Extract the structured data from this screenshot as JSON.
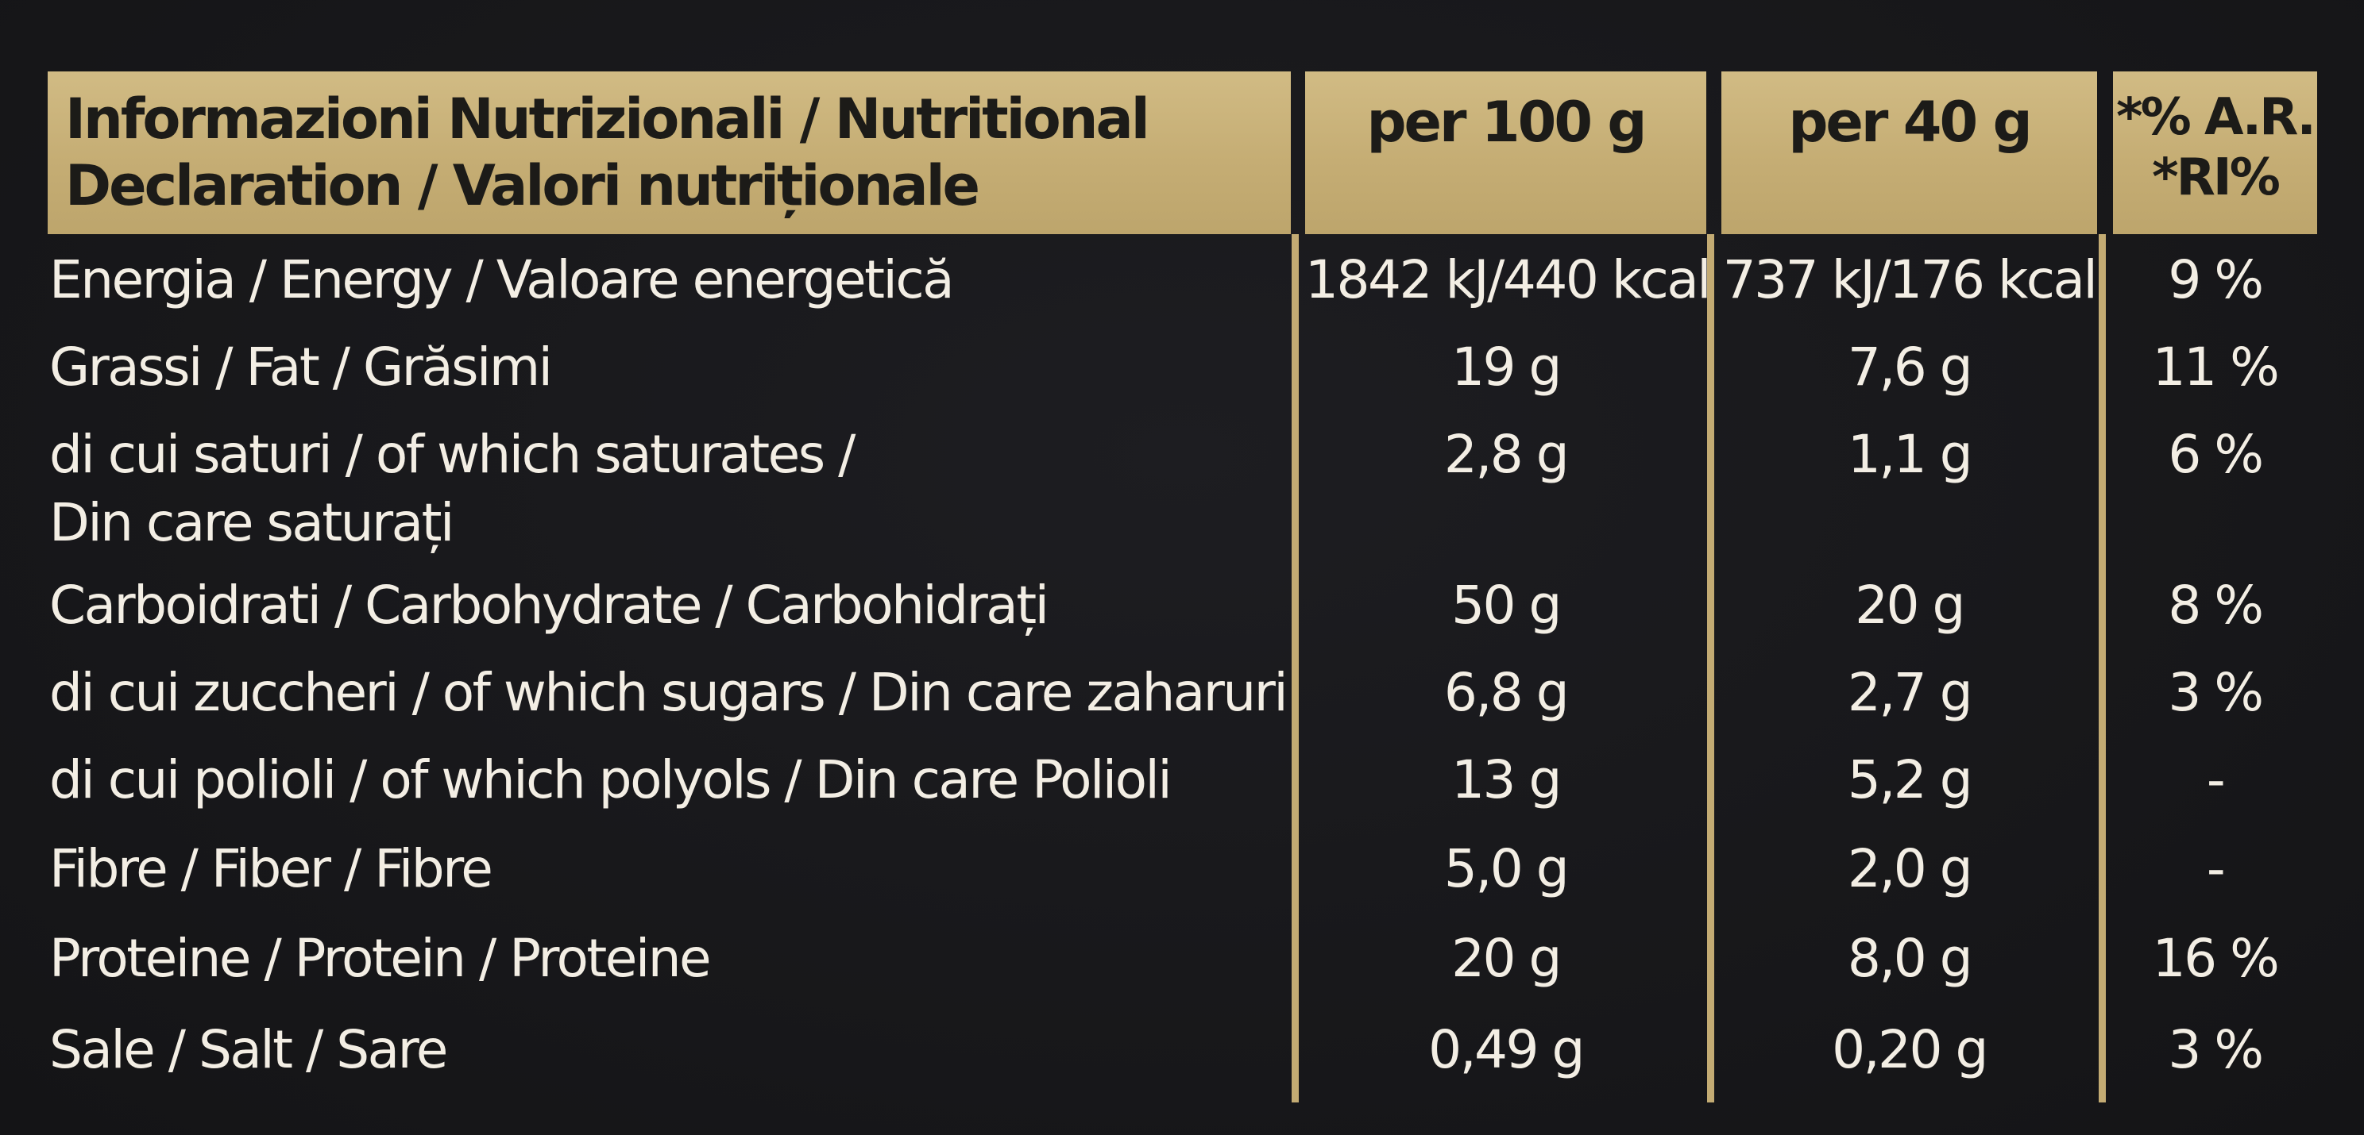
{
  "header": {
    "title": "Informazioni Nutrizionali / Nutritional\nDeclaration / Valori nutriționale",
    "col_100g": "per 100 g",
    "col_40g": "per 40 g",
    "col_ri": "*% A.R.\n*RI%"
  },
  "rows": [
    {
      "label": "Energia / Energy / Valoare energetică",
      "per100": "1842 kJ/440 kcal",
      "per40": "737 kJ/176 kcal",
      "ri": "9 %"
    },
    {
      "label": "Grassi / Fat / Grăsimi",
      "per100": "19 g",
      "per40": "7,6 g",
      "ri": "11 %"
    },
    {
      "label": "di cui saturi / of which saturates /\nDin care saturați",
      "per100": "2,8 g",
      "per40": "1,1 g",
      "ri": "6 %"
    },
    {
      "label": "Carboidrati / Carbohydrate / Carbohidrați",
      "per100": "50 g",
      "per40": "20 g",
      "ri": "8 %"
    },
    {
      "label": "di cui zuccheri / of which sugars / Din care zaharuri",
      "per100": "6,8 g",
      "per40": "2,7 g",
      "ri": "3 %"
    },
    {
      "label": "di cui polioli / of which polyols / Din care Polioli",
      "per100": "13 g",
      "per40": "5,2 g",
      "ri": "-"
    },
    {
      "label": "Fibre / Fiber / Fibre",
      "per100": "5,0 g",
      "per40": "2,0 g",
      "ri": "-"
    },
    {
      "label": "Proteine / Protein / Proteine",
      "per100": "20 g",
      "per40": "8,0 g",
      "ri": "16 %"
    },
    {
      "label": "Sale / Salt / Sare",
      "per100": "0,49 g",
      "per40": "0,20 g",
      "ri": "3 %"
    }
  ],
  "colors": {
    "background": "#17171a",
    "gold": "#c9b27a",
    "text": "#f3eee4"
  }
}
